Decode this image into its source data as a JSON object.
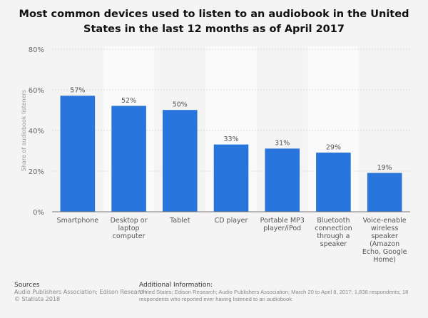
{
  "chart_data": {
    "type": "bar",
    "title": "Most common devices used to listen to an audiobook in the United States in the last 12 months as of April 2017",
    "xlabel": "",
    "ylabel": "Share of audiobook listeners",
    "categories": [
      "Smartphone",
      "Desktop or laptop computer",
      "Tablet",
      "CD player",
      "Portable MP3 player/iPod",
      "Bluetooth connection through a speaker",
      "Voice-enable wireless speaker (Amazon Echo, Google Home)"
    ],
    "category_lines": [
      [
        "Smartphone"
      ],
      [
        "Desktop or",
        "laptop",
        "computer"
      ],
      [
        "Tablet"
      ],
      [
        "CD player"
      ],
      [
        "Portable MP3",
        "player/iPod"
      ],
      [
        "Bluetooth",
        "connection",
        "through a",
        "speaker"
      ],
      [
        "Voice-enable",
        "wireless",
        "speaker",
        "(Amazon",
        "Echo, Google",
        "Home)"
      ]
    ],
    "values": [
      57,
      52,
      50,
      33,
      31,
      29,
      19
    ],
    "data_labels": [
      "57%",
      "52%",
      "50%",
      "33%",
      "31%",
      "29%",
      "19%"
    ],
    "ylim": [
      0,
      80
    ],
    "yticks": [
      0,
      20,
      40,
      60,
      80
    ],
    "ytick_labels": [
      "0%",
      "20%",
      "40%",
      "60%",
      "80%"
    ],
    "grid": true,
    "bar_color": "#2876dd"
  },
  "footer": {
    "sources_heading": "Sources",
    "sources_text": "Audio Publishers Association; Edison Research",
    "copyright": "© Statista 2018",
    "info_heading": "Additional Information:",
    "info_line1": "United States; Edison Research; Audio Publishers Association; March 20 to April 8, 2017; 1,838 respondents; 18",
    "info_line2": "respondents who reported ever having listened to an audiobook"
  }
}
